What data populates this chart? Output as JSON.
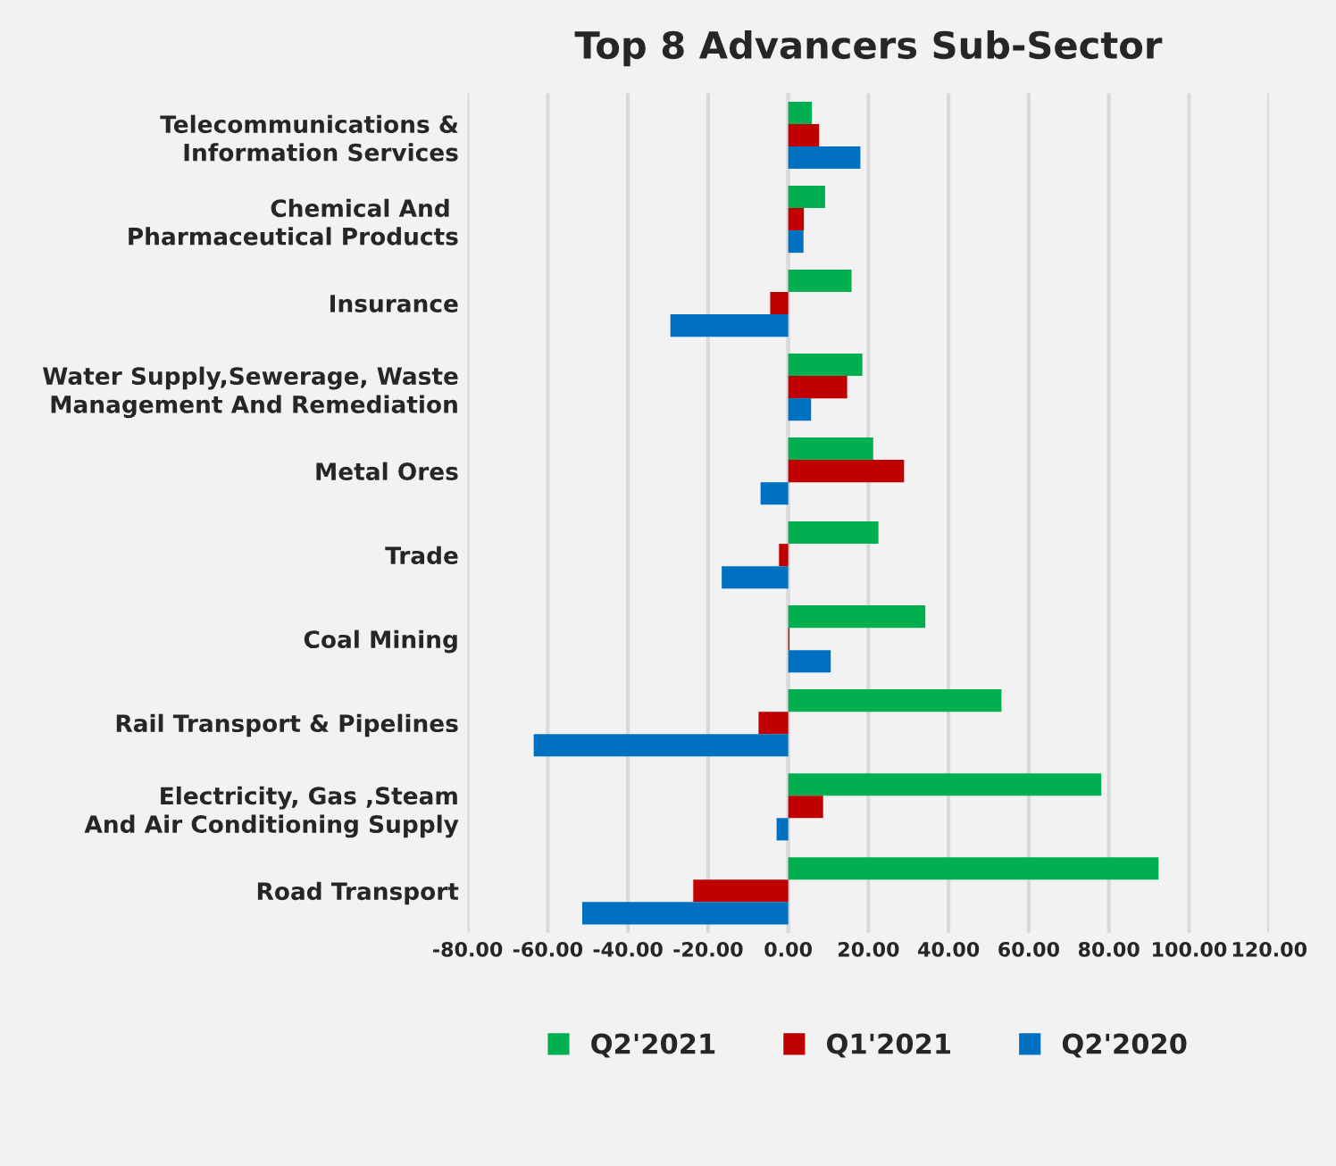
{
  "chart_data": {
    "type": "bar",
    "orientation": "horizontal",
    "title": "Top 8 Advancers Sub-Sector",
    "categories": [
      "Telecommunications & Information Services",
      "Chemical And  Pharmaceutical Products",
      "Insurance",
      "Water Supply,Sewerage, Waste Management And Remediation",
      "Metal Ores",
      "Trade",
      "Coal Mining",
      "Rail Transport & Pipelines",
      "Electricity, Gas ,Steam And Air Conditioning Supply",
      "Road Transport"
    ],
    "series": [
      {
        "name": "Q2'2021",
        "color": "#00b050",
        "values": [
          5.9,
          9.2,
          15.8,
          18.5,
          21.2,
          22.5,
          34.2,
          53.2,
          78.1,
          92.4
        ]
      },
      {
        "name": "Q1'2021",
        "color": "#c00000",
        "values": [
          7.7,
          3.9,
          -4.5,
          14.7,
          28.9,
          -2.3,
          0.3,
          -7.4,
          8.7,
          -23.7
        ]
      },
      {
        "name": "Q2'2020",
        "color": "#0070c0",
        "values": [
          18.0,
          3.8,
          -29.4,
          5.7,
          -6.9,
          -16.6,
          10.6,
          -63.5,
          -2.9,
          -51.4
        ]
      }
    ],
    "xlim": [
      -80,
      120
    ],
    "xticks": [
      {
        "value": -80,
        "label": "-80.00"
      },
      {
        "value": -60,
        "label": "-60.00"
      },
      {
        "value": -40,
        "label": "-40.00"
      },
      {
        "value": -20,
        "label": "-20.00"
      },
      {
        "value": 0,
        "label": "0.00"
      },
      {
        "value": 20,
        "label": "20.00"
      },
      {
        "value": 40,
        "label": "40.00"
      },
      {
        "value": 60,
        "label": "60.00"
      },
      {
        "value": 80,
        "label": "80.00"
      },
      {
        "value": 100,
        "label": "100.00"
      },
      {
        "value": 120,
        "label": "120.00"
      }
    ],
    "grid": "x",
    "legend": "bottom"
  }
}
